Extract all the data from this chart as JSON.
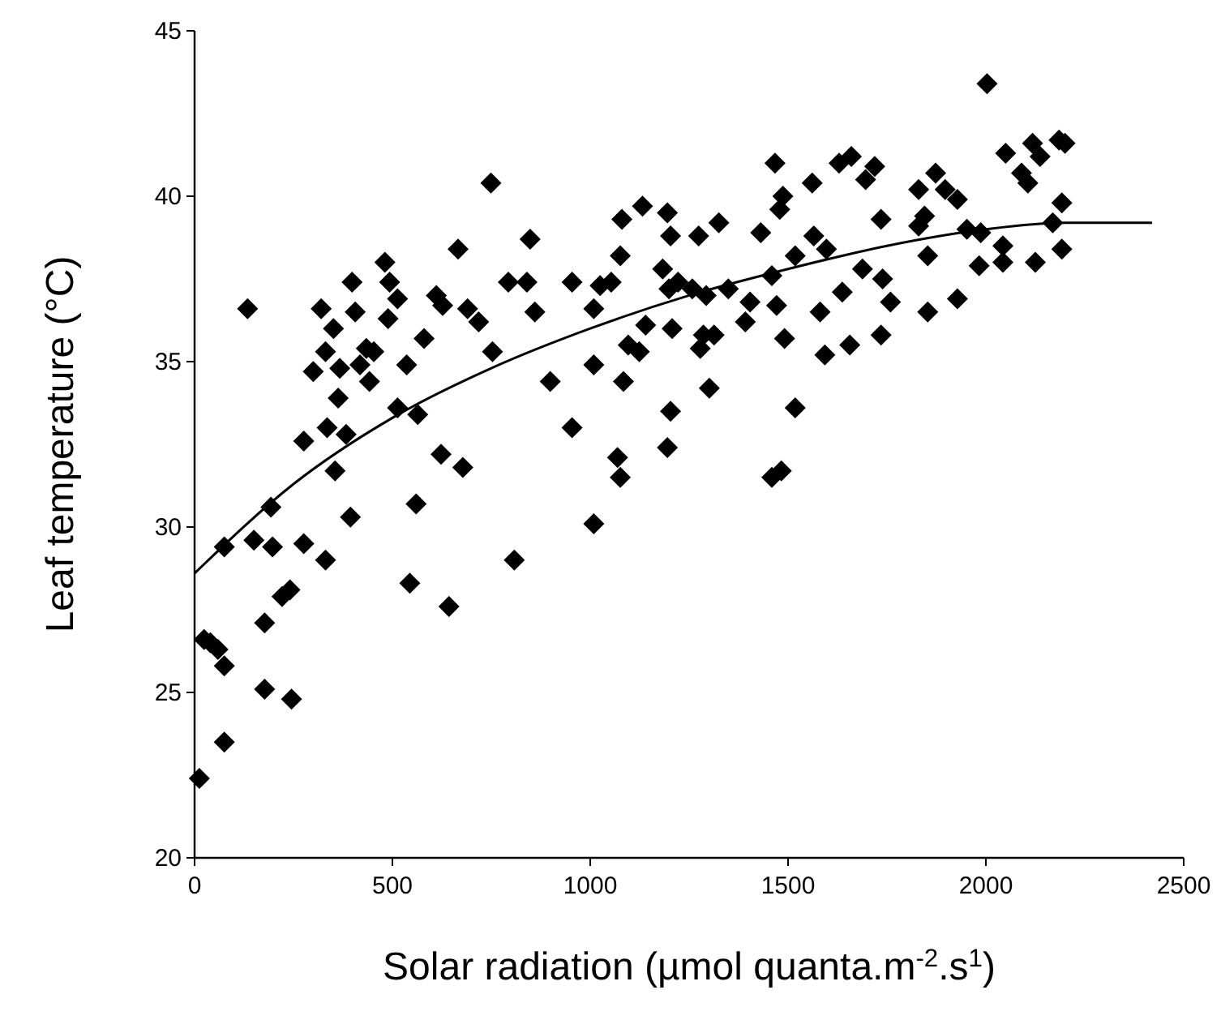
{
  "chart_data": {
    "type": "scatter",
    "xlabel": "Solar radiation (µmol quanta.m$^{-2}$.s$^{1}$)",
    "ylabel": "Leaf temperature (°C)",
    "xlim": [
      0,
      2500
    ],
    "xticks": [
      0,
      500,
      1000,
      1500,
      2000,
      2500
    ],
    "ylim": [
      20,
      45
    ],
    "yticks": [
      20,
      25,
      30,
      35,
      40,
      45
    ],
    "grid": false,
    "marker": "diamond",
    "series": [
      {
        "color": "#000000",
        "x": [
          12,
          75,
          24,
          40,
          59,
          75,
          75,
          134,
          150,
          177,
          177,
          193,
          197,
          221,
          241,
          245,
          276,
          276,
          300,
          320,
          331,
          331,
          335,
          351,
          355,
          363,
          367,
          383,
          398,
          394,
          406,
          418,
          434,
          442,
          453,
          481,
          493,
          513,
          489,
          513,
          536,
          564,
          580,
          544,
          560,
          611,
          627,
          623,
          643,
          666,
          678,
          690,
          718,
          749,
          753,
          793,
          808,
          840,
          848,
          860,
          899,
          954,
          954,
          1009,
          1009,
          1009,
          1025,
          1053,
          1069,
          1076,
          1080,
          1076,
          1084,
          1096,
          1124,
          1140,
          1132,
          1183,
          1195,
          1199,
          1203,
          1207,
          1195,
          1203,
          1222,
          1258,
          1274,
          1278,
          1286,
          1293,
          1301,
          1313,
          1325,
          1349,
          1392,
          1404,
          1431,
          1459,
          1471,
          1467,
          1479,
          1487,
          1491,
          1459,
          1483,
          1518,
          1518,
          1561,
          1565,
          1581,
          1593,
          1597,
          1629,
          1637,
          1656,
          1660,
          1688,
          1696,
          1719,
          1735,
          1735,
          1739,
          1759,
          1830,
          1830,
          1845,
          1853,
          1853,
          1873,
          1897,
          1928,
          1928,
          1952,
          1983,
          1987,
          2003,
          2043,
          2043,
          2050,
          2090,
          2106,
          2118,
          2137,
          2125,
          2169,
          2185,
          2200,
          2192,
          2192
        ],
        "values": [
          22.4,
          23.5,
          26.6,
          26.5,
          26.3,
          25.8,
          29.4,
          36.6,
          29.6,
          25.1,
          27.1,
          30.6,
          29.4,
          27.9,
          28.1,
          24.8,
          29.5,
          32.6,
          34.7,
          36.6,
          35.3,
          29.0,
          33.0,
          36.0,
          31.7,
          33.9,
          34.8,
          32.8,
          37.4,
          30.3,
          36.5,
          34.9,
          35.4,
          34.4,
          35.3,
          38.0,
          37.4,
          36.9,
          36.3,
          33.6,
          34.9,
          33.4,
          35.7,
          28.3,
          30.7,
          37.0,
          36.7,
          32.2,
          27.6,
          38.4,
          31.8,
          36.6,
          36.2,
          40.4,
          35.3,
          37.4,
          29.0,
          37.4,
          38.7,
          36.5,
          34.4,
          37.4,
          33.0,
          36.6,
          34.9,
          30.1,
          37.3,
          37.4,
          32.1,
          31.5,
          39.3,
          38.2,
          34.4,
          35.5,
          35.3,
          36.1,
          39.7,
          37.8,
          39.5,
          37.2,
          38.8,
          36.0,
          32.4,
          33.5,
          37.4,
          37.2,
          38.8,
          35.4,
          35.8,
          37.0,
          34.2,
          35.8,
          39.2,
          37.2,
          36.2,
          36.8,
          38.9,
          37.6,
          36.7,
          41.0,
          39.6,
          40.0,
          35.7,
          31.5,
          31.7,
          33.6,
          38.2,
          40.4,
          38.8,
          36.5,
          35.2,
          38.4,
          41.0,
          37.1,
          35.5,
          41.2,
          37.8,
          40.5,
          40.9,
          39.3,
          35.8,
          37.5,
          36.8,
          40.2,
          39.1,
          39.4,
          36.5,
          38.2,
          40.7,
          40.2,
          39.9,
          36.9,
          39.0,
          37.9,
          38.9,
          43.4,
          38.5,
          38.0,
          41.3,
          40.7,
          40.4,
          41.6,
          41.2,
          38.0,
          39.2,
          41.7,
          41.6,
          39.8,
          38.4
        ]
      },
      {
        "type": "line",
        "color": "#000000",
        "marker": "none",
        "line_style": "solid",
        "x": [
          0,
          250,
          500,
          750,
          1000,
          1250,
          1500,
          1750,
          2000,
          2200,
          2420
        ],
        "values": [
          28.6,
          31.3,
          33.3,
          34.8,
          36.0,
          37.0,
          37.8,
          38.5,
          39.0,
          39.2,
          39.2
        ]
      }
    ]
  }
}
